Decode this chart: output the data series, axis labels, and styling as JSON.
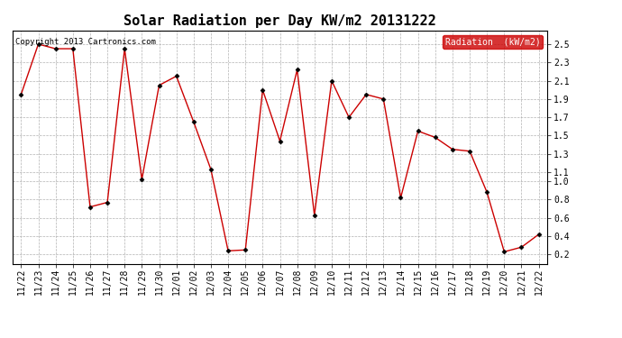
{
  "title": "Solar Radiation per Day KW/m2 20131222",
  "copyright_text": "Copyright 2013 Cartronics.com",
  "legend_label": "Radiation  (kW/m2)",
  "dates": [
    "11/22",
    "11/23",
    "11/24",
    "11/25",
    "11/26",
    "11/27",
    "11/28",
    "11/29",
    "11/30",
    "12/01",
    "12/02",
    "12/03",
    "12/04",
    "12/05",
    "12/06",
    "12/07",
    "12/08",
    "12/09",
    "12/10",
    "12/11",
    "12/12",
    "12/13",
    "12/14",
    "12/15",
    "12/16",
    "12/17",
    "12/18",
    "12/19",
    "12/20",
    "12/21",
    "12/22"
  ],
  "values": [
    1.95,
    2.5,
    2.45,
    2.45,
    0.72,
    0.77,
    2.45,
    1.02,
    2.05,
    2.15,
    1.65,
    1.13,
    0.24,
    0.25,
    2.0,
    1.44,
    2.22,
    0.63,
    2.1,
    1.7,
    1.95,
    1.9,
    0.82,
    1.55,
    1.48,
    1.35,
    1.33,
    0.88,
    0.23,
    0.28,
    0.42
  ],
  "line_color": "#cc0000",
  "marker_color": "#000000",
  "bg_color": "#ffffff",
  "grid_color": "#aaaaaa",
  "ylim_min": 0.1,
  "ylim_max": 2.65,
  "yticks": [
    0.2,
    0.4,
    0.6,
    0.8,
    1.0,
    1.1,
    1.3,
    1.5,
    1.7,
    1.9,
    2.1,
    2.3,
    2.5
  ],
  "legend_bg": "#cc0000",
  "legend_text_color": "#ffffff",
  "title_fontsize": 11,
  "tick_fontsize": 7,
  "copyright_fontsize": 6.5
}
